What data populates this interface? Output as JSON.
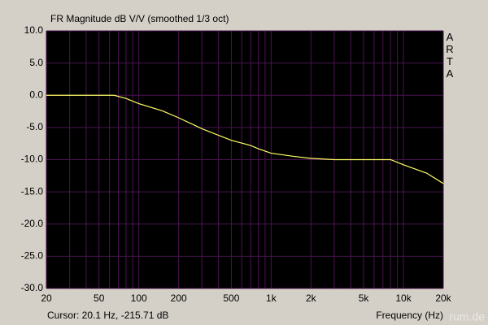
{
  "chart_data": {
    "type": "line",
    "title": "FR Magnitude dB V/V (smoothed 1/3 oct)",
    "side_label": "ARTA",
    "cursor_text": "Cursor: 20.1 Hz, -215.71 dB",
    "x_label": "Frequency (Hz)",
    "watermark": "rum.de",
    "x_log": true,
    "grid": true,
    "grid_color": "#4a1450",
    "color": "#ffff66",
    "xlim": [
      20,
      20000
    ],
    "ylim": [
      -30,
      10
    ],
    "xticks": [
      20,
      50,
      100,
      200,
      500,
      {
        "value": 1000,
        "label": "1k"
      },
      {
        "value": 2000,
        "label": "2k"
      },
      {
        "value": 5000,
        "label": "5k"
      },
      {
        "value": 10000,
        "label": "10k"
      },
      {
        "value": 20000,
        "label": "20k"
      }
    ],
    "x_minor_ticks": [
      30,
      40,
      60,
      70,
      80,
      90,
      300,
      400,
      600,
      700,
      800,
      900,
      3000,
      4000,
      6000,
      7000,
      8000,
      9000
    ],
    "yticks": [
      {
        "value": 10,
        "label": "10.0"
      },
      {
        "value": 5,
        "label": "5.0"
      },
      {
        "value": 0,
        "label": "0.0"
      },
      {
        "value": -5,
        "label": "-5.0"
      },
      {
        "value": -10,
        "label": "-10.0"
      },
      {
        "value": -15,
        "label": "-15.0"
      },
      {
        "value": -20,
        "label": "-20.0"
      },
      {
        "value": -25,
        "label": "-25.0"
      },
      {
        "value": -30,
        "label": "-30.0"
      }
    ],
    "x": [
      20,
      40,
      65,
      80,
      100,
      150,
      200,
      300,
      500,
      700,
      800,
      1000,
      1500,
      2000,
      3000,
      5000,
      8000,
      10000,
      15000,
      20000
    ],
    "values": [
      0,
      0,
      0,
      -0.5,
      -1.3,
      -2.4,
      -3.5,
      -5.2,
      -7,
      -7.8,
      -8.3,
      -9,
      -9.5,
      -9.8,
      -10,
      -10,
      -10,
      -10.8,
      -12.1,
      -13.7
    ]
  }
}
